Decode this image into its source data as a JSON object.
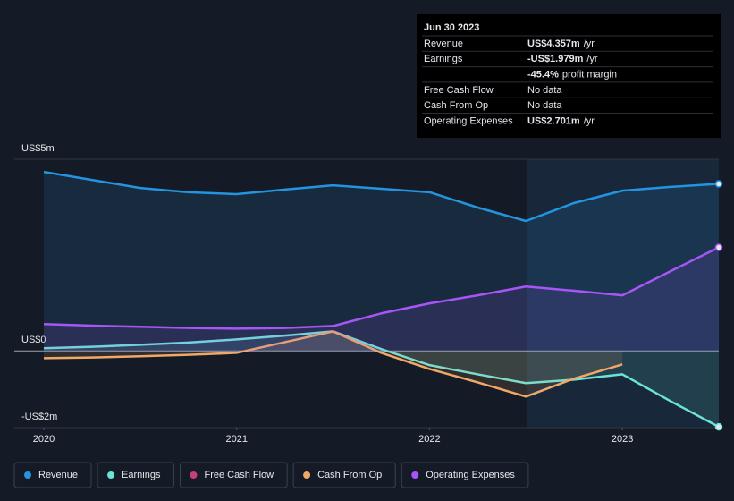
{
  "chart_data": {
    "type": "line",
    "x": [
      2020,
      2020.25,
      2020.5,
      2020.75,
      2021,
      2021.25,
      2021.5,
      2021.75,
      2022,
      2022.25,
      2022.5,
      2022.75,
      2023,
      2023.25,
      2023.5
    ],
    "xlim": [
      2020,
      2023.5
    ],
    "xticks": [
      2020,
      2021,
      2022,
      2023
    ],
    "ylim": [
      -2,
      5
    ],
    "yticks": [
      {
        "value": 5,
        "label": "US$5m"
      },
      {
        "value": 0,
        "label": "US$0"
      },
      {
        "value": -2,
        "label": "-US$2m"
      }
    ],
    "series": [
      {
        "name": "Revenue",
        "color": "#2394df",
        "values": [
          4.67,
          4.46,
          4.25,
          4.14,
          4.09,
          4.21,
          4.32,
          4.23,
          4.14,
          3.74,
          3.39,
          3.86,
          4.18,
          4.28,
          4.357
        ]
      },
      {
        "name": "Earnings",
        "color": "#6ce3d6",
        "values": [
          0.07,
          0.11,
          0.16,
          0.22,
          0.3,
          0.4,
          0.51,
          0.05,
          -0.37,
          -0.61,
          -0.84,
          -0.75,
          -0.61,
          -1.31,
          -1.979
        ]
      },
      {
        "name": "Free Cash Flow",
        "color": "#c2417a",
        "values": [
          null,
          null,
          null,
          null,
          null,
          null,
          null,
          null,
          null,
          null,
          null,
          null,
          null,
          null,
          null
        ]
      },
      {
        "name": "Cash From Op",
        "color": "#f0a868",
        "values": [
          -0.19,
          -0.17,
          -0.14,
          -0.1,
          -0.05,
          0.23,
          0.51,
          -0.05,
          -0.47,
          -0.82,
          -1.19,
          -0.72,
          -0.35,
          null,
          null
        ]
      },
      {
        "name": "Operating Expenses",
        "color": "#a855f7",
        "values": [
          0.7,
          0.66,
          0.63,
          0.6,
          0.58,
          0.6,
          0.65,
          0.98,
          1.24,
          1.45,
          1.68,
          1.57,
          1.45,
          2.08,
          2.701
        ]
      }
    ],
    "tooltip": {
      "date": "Jun 30 2023",
      "rows": [
        {
          "label": "Revenue",
          "value": "US$4.357m",
          "suffix": "/yr",
          "color": "#2394df"
        },
        {
          "label": "Earnings",
          "value": "-US$1.979m",
          "suffix": "/yr",
          "color": "#ef4444"
        },
        {
          "label": "",
          "value": "-45.4%",
          "suffix": "profit margin",
          "color": "#ef4444"
        },
        {
          "label": "Free Cash Flow",
          "value": "No data",
          "suffix": "",
          "color": "#6b7280"
        },
        {
          "label": "Cash From Op",
          "value": "No data",
          "suffix": "",
          "color": "#6b7280"
        },
        {
          "label": "Operating Expenses",
          "value": "US$2.701m",
          "suffix": "/yr",
          "color": "#a855f7"
        }
      ]
    }
  }
}
